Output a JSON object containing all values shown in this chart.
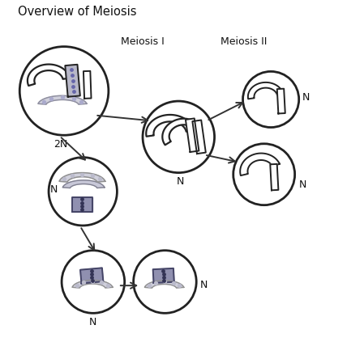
{
  "title": "Overview of Meiosis",
  "label_meiosis1": "Meiosis I",
  "label_meiosis2": "Meiosis II",
  "label_2N": "2N",
  "label_N": "N",
  "bg_color": "#ffffff",
  "cell_edge_color": "#222222",
  "cell_linewidth": 2.0,
  "chr_outline": "#222222",
  "chr_gray": "#b8b8c8",
  "chr_light": "#d0d0dc",
  "chr_dark": "#8888aa",
  "chr_spotted": "#9090b0",
  "chr_lw": 1.4,
  "arrow_color": "#333333",
  "cells": {
    "c2N": [
      0.155,
      0.735,
      0.13
    ],
    "cMid": [
      0.49,
      0.6,
      0.105
    ],
    "cLeft": [
      0.21,
      0.44,
      0.1
    ],
    "cTR": [
      0.76,
      0.71,
      0.082
    ],
    "cBR": [
      0.74,
      0.49,
      0.09
    ],
    "cBL": [
      0.24,
      0.175,
      0.092
    ],
    "cBR2": [
      0.45,
      0.175,
      0.092
    ]
  }
}
